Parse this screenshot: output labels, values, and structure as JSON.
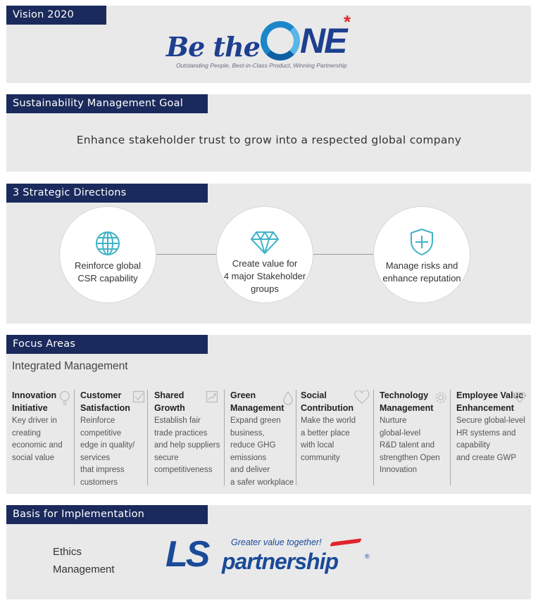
{
  "vision": {
    "label": "Vision 2020",
    "logo_text_be": "Be the",
    "logo_text_one": "NE",
    "logo_star": "*",
    "logo_sub": "Outstanding People, Best-in-Class Product, Winning Partnership"
  },
  "goal": {
    "label": "Sustainability Management Goal",
    "text": "Enhance stakeholder trust to grow into a respected global company"
  },
  "directions": {
    "label": "3 Strategic Directions",
    "items": [
      {
        "icon": "globe-icon",
        "line1": "Reinforce global",
        "line2": "CSR capability",
        "line3": ""
      },
      {
        "icon": "diamond-icon",
        "line1": "Create value for",
        "line2": "4 major Stakeholder",
        "line3": "groups"
      },
      {
        "icon": "shield-icon",
        "line1": "Manage risks and",
        "line2": "enhance reputation",
        "line3": ""
      }
    ]
  },
  "focus": {
    "label": "Focus Areas",
    "subtitle": "Integrated Management",
    "areas": [
      {
        "title1": "Innovation",
        "title2": "Initiative",
        "desc": "Key driver in\ncreating\neconomic and\nsocial value",
        "icon": "bulb-icon"
      },
      {
        "title1": "Customer",
        "title2": "Satisfaction",
        "desc": "Reinforce\ncompetitive\nedge  in quality/\nservices\nthat impress\ncustomers",
        "icon": "checkbox-icon"
      },
      {
        "title1": "Shared",
        "title2": "Growth",
        "desc": "Establish fair\ntrade practices\nand help suppliers\nsecure\ncompetitiveness",
        "icon": "growth-chart-icon"
      },
      {
        "title1": "Green",
        "title2": "Management",
        "desc": "Expand green\nbusiness,\nreduce GHG\nemissions\n and  deliver\na safer workplace",
        "icon": "leaf-drop-icon"
      },
      {
        "title1": "Social",
        "title2": "Contribution",
        "desc": "Make the world\na better place\nwith local\ncommunity",
        "icon": "heart-icon"
      },
      {
        "title1": "Technology",
        "title2": "Management",
        "desc": "Nurture\nglobal-level\nR&D talent and\nstrengthen Open\nInnovation",
        "icon": "gear-icon"
      },
      {
        "title1": "Employee Value",
        "title2": "Enhancement",
        "desc": "Secure global-level\nHR systems and\ncapability\nand create GWP",
        "icon": "diamond-outline-icon"
      }
    ]
  },
  "basis": {
    "label": "Basis for Implementation",
    "ethics_line1": "Ethics",
    "ethics_line2": "Management",
    "logo_ls": "LS",
    "logo_partnership": "partnership",
    "logo_tagline": "Greater value together!",
    "logo_reg": "®"
  },
  "colors": {
    "navy_tag": "#1b2a5c",
    "panel_gray": "#e9e9ea",
    "teal_icon": "#3fb3c8",
    "logo_blue": "#1a4a98",
    "accent_red": "#e02a2a"
  }
}
